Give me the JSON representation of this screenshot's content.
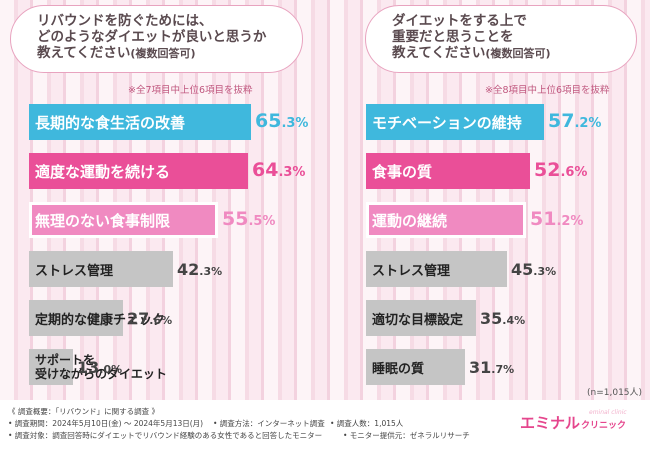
{
  "left_question": {
    "line1": "リバウンドを防ぐためには、",
    "line2": "どのようなダイエットが良いと思うか",
    "line3": "教えてください",
    "line3_small": "(複数回答可)"
  },
  "left_note": "※全7項目中上位6項目を抜粋",
  "right_question": {
    "line1": "ダイエットをする上で",
    "line2": "重要だと思うことを",
    "line3": "教えてください",
    "line3_small": "(複数回答可)"
  },
  "right_note": "※全8項目中上位6項目を抜粋",
  "chart_data": [
    {
      "type": "bar",
      "orientation": "horizontal",
      "title": "リバウンドを防ぐためには、どのようなダイエットが良いと思うか教えてください(複数回答可)",
      "categories": [
        "長期的な食生活の改善",
        "適度な運動を続ける",
        "無理のない食事制限",
        "ストレス管理",
        "定期的な健康チェック",
        "サポートを受けながらのダイエット"
      ],
      "values": [
        65.3,
        64.3,
        55.5,
        42.3,
        27.6,
        13.0
      ],
      "labels": [
        {
          "big": "65",
          "small": ".3%"
        },
        {
          "big": "64",
          "small": ".3%"
        },
        {
          "big": "55",
          "small": ".5%"
        },
        {
          "big": "42",
          "small": ".3%"
        },
        {
          "big": "27",
          "small": ".6%"
        },
        {
          "big": "13",
          "small": ".0%"
        }
      ],
      "unit": "%",
      "colors": [
        "#3fb8dd",
        "#ea4f98",
        "#f08ac1",
        "#c5c5c5",
        "#c5c5c5",
        "#c5c5c5"
      ]
    },
    {
      "type": "bar",
      "orientation": "horizontal",
      "title": "ダイエットをする上で重要だと思うことを教えてください(複数回答可)",
      "categories": [
        "モチベーションの維持",
        "食事の質",
        "運動の継続",
        "ストレス管理",
        "適切な目標設定",
        "睡眠の質"
      ],
      "values": [
        57.2,
        52.6,
        51.2,
        45.3,
        35.4,
        31.7
      ],
      "labels": [
        {
          "big": "57",
          "small": ".2%"
        },
        {
          "big": "52",
          "small": ".6%"
        },
        {
          "big": "51",
          "small": ".2%"
        },
        {
          "big": "45",
          "small": ".3%"
        },
        {
          "big": "35",
          "small": ".4%"
        },
        {
          "big": "31",
          "small": ".7%"
        }
      ],
      "unit": "%",
      "colors": [
        "#3fb8dd",
        "#ea4f98",
        "#f08ac1",
        "#c5c5c5",
        "#c5c5c5",
        "#c5c5c5"
      ]
    }
  ],
  "sample_size": "(n=1,015人)",
  "footer": {
    "summary": "《 調査概要：「リバウンド」に関する調査 》",
    "period": "• 調査期間：2024年5月10日(金) ～ 2024年5月13日(月)",
    "method": "• 調査方法：インターネット調査",
    "count": "• 調査人数：1,015人",
    "target": "• 調査対象：調査回答時にダイエットでリバウンド経験のある女性であると回答したモニター",
    "provider": "• モニター提供元：ゼネラルリサーチ"
  },
  "logo": {
    "main": "エミナル",
    "sub": "クリニック",
    "tag": "eminal clinic"
  }
}
